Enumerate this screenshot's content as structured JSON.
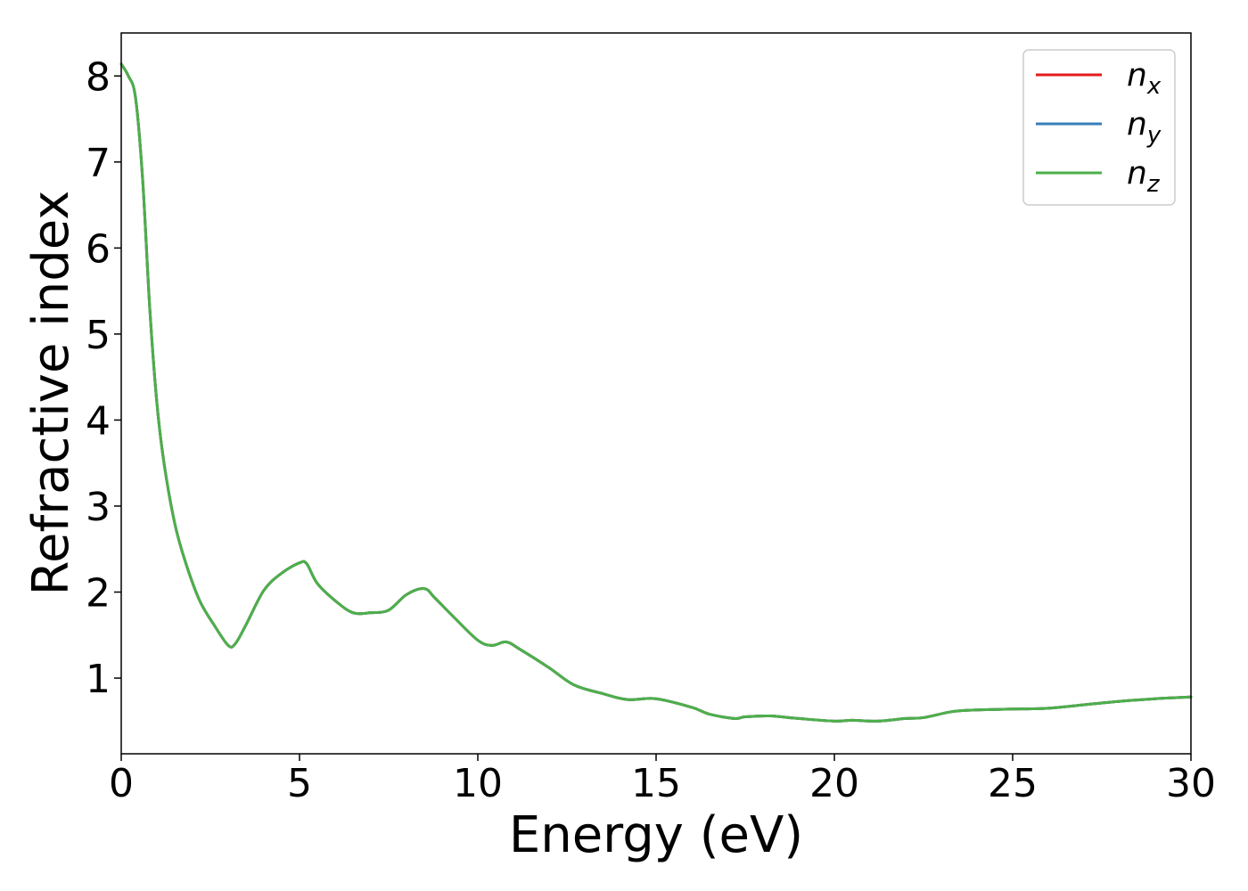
{
  "chart_data": {
    "type": "line",
    "xlabel": "Energy (eV)",
    "ylabel": "Refractive index",
    "xlim": [
      0,
      30
    ],
    "ylim": [
      0.12,
      8.5
    ],
    "xticks": [
      "0",
      "5",
      "10",
      "15",
      "20",
      "25",
      "30"
    ],
    "yticks": [
      "1",
      "2",
      "3",
      "4",
      "5",
      "6",
      "7",
      "8"
    ],
    "grid": false,
    "legend_position": "top-right",
    "x": [
      0.0,
      0.2,
      0.4,
      0.6,
      0.8,
      1.0,
      1.2,
      1.5,
      1.8,
      2.2,
      2.6,
      3.0,
      3.2,
      3.5,
      4.0,
      4.5,
      5.0,
      5.2,
      5.5,
      6.0,
      6.5,
      7.0,
      7.5,
      8.0,
      8.5,
      8.8,
      9.3,
      10.0,
      10.4,
      10.8,
      11.2,
      12.0,
      12.7,
      13.5,
      14.2,
      15.0,
      16.0,
      16.5,
      17.2,
      17.5,
      18.2,
      19.0,
      20.0,
      20.5,
      21.2,
      22.0,
      22.5,
      23.3,
      24.0,
      25.0,
      26.0,
      27.0,
      28.0,
      29.0,
      30.0
    ],
    "series": [
      {
        "name": "n_x",
        "label_main": "n",
        "label_sub": "x",
        "color": "#e41a1c",
        "values": [
          8.14,
          8.0,
          7.75,
          6.8,
          5.3,
          4.2,
          3.5,
          2.8,
          2.35,
          1.9,
          1.62,
          1.38,
          1.4,
          1.62,
          2.02,
          2.22,
          2.34,
          2.33,
          2.1,
          1.9,
          1.76,
          1.76,
          1.79,
          1.97,
          2.04,
          1.93,
          1.72,
          1.44,
          1.38,
          1.42,
          1.33,
          1.12,
          0.92,
          0.82,
          0.75,
          0.76,
          0.66,
          0.58,
          0.53,
          0.55,
          0.56,
          0.53,
          0.5,
          0.51,
          0.5,
          0.53,
          0.54,
          0.61,
          0.63,
          0.64,
          0.65,
          0.69,
          0.73,
          0.76,
          0.78
        ]
      },
      {
        "name": "n_y",
        "label_main": "n",
        "label_sub": "y",
        "color": "#377eb8",
        "values": [
          8.14,
          8.0,
          7.75,
          6.8,
          5.3,
          4.2,
          3.5,
          2.8,
          2.35,
          1.9,
          1.62,
          1.38,
          1.4,
          1.62,
          2.02,
          2.22,
          2.34,
          2.33,
          2.1,
          1.9,
          1.76,
          1.76,
          1.79,
          1.97,
          2.04,
          1.93,
          1.72,
          1.44,
          1.38,
          1.42,
          1.33,
          1.12,
          0.92,
          0.82,
          0.75,
          0.76,
          0.66,
          0.58,
          0.53,
          0.55,
          0.56,
          0.53,
          0.5,
          0.51,
          0.5,
          0.53,
          0.54,
          0.61,
          0.63,
          0.64,
          0.65,
          0.69,
          0.73,
          0.76,
          0.78
        ]
      },
      {
        "name": "n_z",
        "label_main": "n",
        "label_sub": "z",
        "color": "#4daf4a",
        "values": [
          8.14,
          8.0,
          7.75,
          6.8,
          5.3,
          4.2,
          3.5,
          2.8,
          2.35,
          1.9,
          1.62,
          1.38,
          1.4,
          1.62,
          2.02,
          2.22,
          2.34,
          2.33,
          2.1,
          1.9,
          1.76,
          1.76,
          1.79,
          1.97,
          2.04,
          1.93,
          1.72,
          1.44,
          1.38,
          1.42,
          1.33,
          1.12,
          0.92,
          0.82,
          0.75,
          0.76,
          0.66,
          0.58,
          0.53,
          0.55,
          0.56,
          0.53,
          0.5,
          0.51,
          0.5,
          0.53,
          0.54,
          0.61,
          0.63,
          0.64,
          0.65,
          0.69,
          0.73,
          0.76,
          0.78
        ]
      }
    ]
  }
}
